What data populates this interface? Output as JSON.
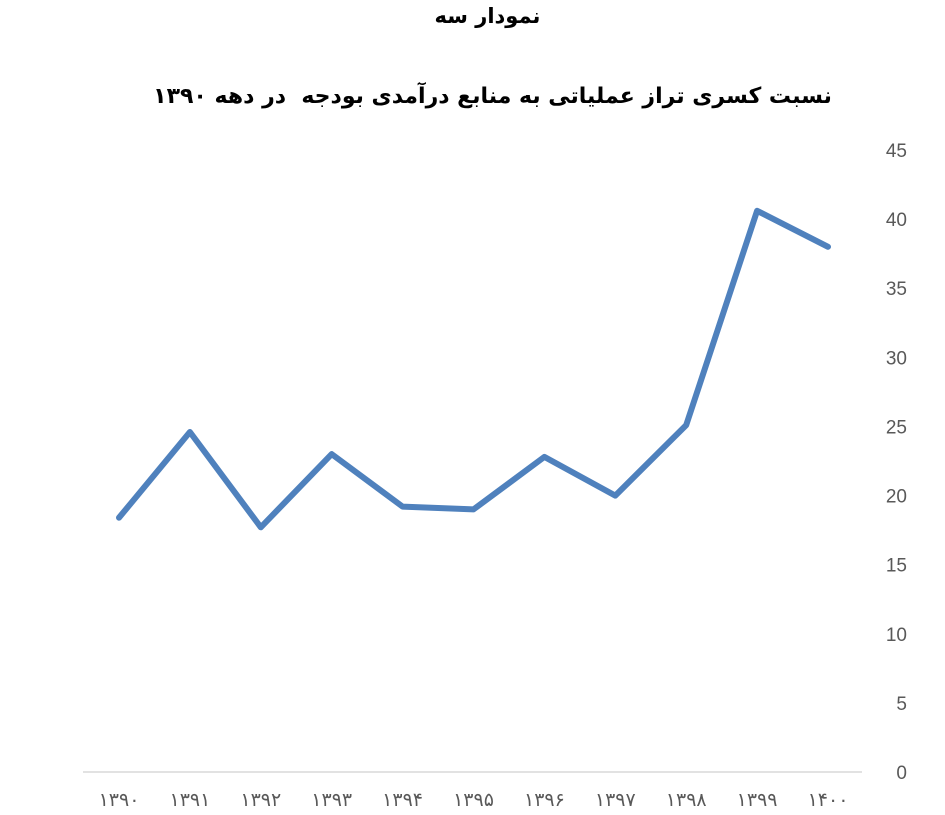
{
  "page": {
    "heading": "نمودار سه"
  },
  "chart_data": {
    "type": "line",
    "title": "نسبت کسری تراز عملیاتی به منابع درآمدی بودجه  در دهه ۱۳۹۰",
    "xlabel": "",
    "ylabel": "",
    "categories": [
      "۱۳۹۰",
      "۱۳۹۱",
      "۱۳۹۲",
      "۱۳۹۳",
      "۱۳۹۴",
      "۱۳۹۵",
      "۱۳۹۶",
      "۱۳۹۷",
      "۱۳۹۸",
      "۱۳۹۹",
      "۱۴۰۰"
    ],
    "series": [
      {
        "values": [
          18.4,
          24.6,
          17.7,
          23.0,
          19.2,
          19.0,
          22.8,
          20.0,
          25.1,
          40.6,
          38.0
        ],
        "color": "#4f81bd"
      }
    ],
    "ylim": [
      0,
      45
    ],
    "yticks": [
      0,
      5,
      10,
      15,
      20,
      25,
      30,
      35,
      40,
      45
    ],
    "y_axis_position": "right",
    "grid": false,
    "legend": "none"
  }
}
